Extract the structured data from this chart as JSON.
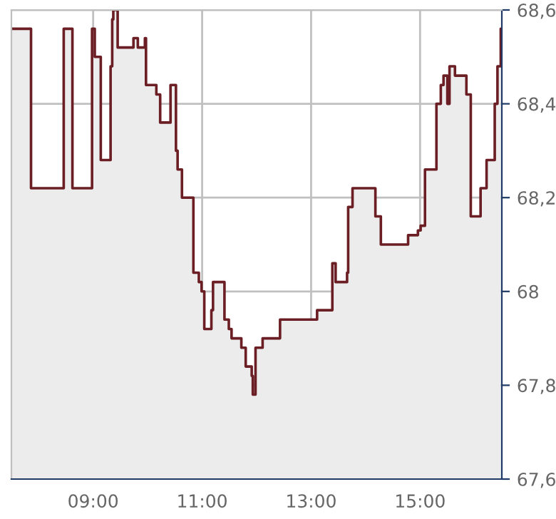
{
  "chart_data": {
    "type": "area",
    "grid": true,
    "x": [
      7.5,
      7.86,
      8.46,
      8.62,
      8.98,
      9.03,
      9.14,
      9.32,
      9.35,
      9.37,
      9.45,
      9.74,
      9.82,
      9.95,
      9.97,
      10.16,
      10.23,
      10.42,
      10.52,
      10.55,
      10.63,
      10.84,
      10.94,
      10.99,
      11.04,
      11.17,
      11.2,
      11.41,
      11.49,
      11.54,
      11.72,
      11.8,
      11.91,
      11.93,
      11.98,
      12.11,
      12.43,
      13.11,
      13.39,
      13.45,
      13.66,
      13.68,
      13.76,
      14.18,
      14.28,
      14.78,
      14.96,
      15.01,
      15.09,
      15.3,
      15.38,
      15.43,
      15.5,
      15.54,
      15.64,
      15.85,
      15.93,
      16.11,
      16.22,
      16.37,
      16.42,
      16.48
    ],
    "series": [
      {
        "type": "area",
        "color": "#ececec",
        "values": [
          68.56,
          68.22,
          68.56,
          68.22,
          68.56,
          68.5,
          68.28,
          68.48,
          68.58,
          68.6,
          68.52,
          68.54,
          68.52,
          68.54,
          68.44,
          68.42,
          68.36,
          68.44,
          68.3,
          68.26,
          68.2,
          68.04,
          68.02,
          68.0,
          67.92,
          67.96,
          68.02,
          67.94,
          67.92,
          67.9,
          67.88,
          67.84,
          67.82,
          67.78,
          67.88,
          67.9,
          67.94,
          67.96,
          68.06,
          68.02,
          68.04,
          68.18,
          68.22,
          68.16,
          68.1,
          68.12,
          68.13,
          68.14,
          68.26,
          68.4,
          68.44,
          68.46,
          68.4,
          68.48,
          68.46,
          68.42,
          68.16,
          68.22,
          68.28,
          68.4,
          68.48,
          68.56
        ]
      },
      {
        "type": "step",
        "color": "#6b1f24",
        "values": [
          68.56,
          68.22,
          68.56,
          68.22,
          68.56,
          68.5,
          68.28,
          68.48,
          68.58,
          68.6,
          68.52,
          68.54,
          68.52,
          68.54,
          68.44,
          68.42,
          68.36,
          68.44,
          68.3,
          68.26,
          68.2,
          68.04,
          68.02,
          68.0,
          67.92,
          67.96,
          68.02,
          67.94,
          67.92,
          67.9,
          67.88,
          67.84,
          67.82,
          67.78,
          67.88,
          67.9,
          67.94,
          67.96,
          68.06,
          68.02,
          68.04,
          68.18,
          68.22,
          68.16,
          68.1,
          68.12,
          68.13,
          68.14,
          68.26,
          68.4,
          68.44,
          68.46,
          68.4,
          68.48,
          68.46,
          68.42,
          68.16,
          68.22,
          68.28,
          68.4,
          68.48,
          68.56
        ]
      }
    ],
    "xlim": [
      7.5,
      16.5
    ],
    "xticks": [
      {
        "value": 9,
        "label": "09:00"
      },
      {
        "value": 11,
        "label": "11:00"
      },
      {
        "value": 13,
        "label": "13:00"
      },
      {
        "value": 15,
        "label": "15:00"
      }
    ],
    "ylim": [
      67.6,
      68.6
    ],
    "yticks": [
      {
        "value": 67.6,
        "label": "67,6"
      },
      {
        "value": 67.8,
        "label": "67,8"
      },
      {
        "value": 68,
        "label": "68"
      },
      {
        "value": 68.2,
        "label": "68,2"
      },
      {
        "value": 68.4,
        "label": "68,4"
      },
      {
        "value": 68.6,
        "label": "68,6"
      }
    ]
  }
}
